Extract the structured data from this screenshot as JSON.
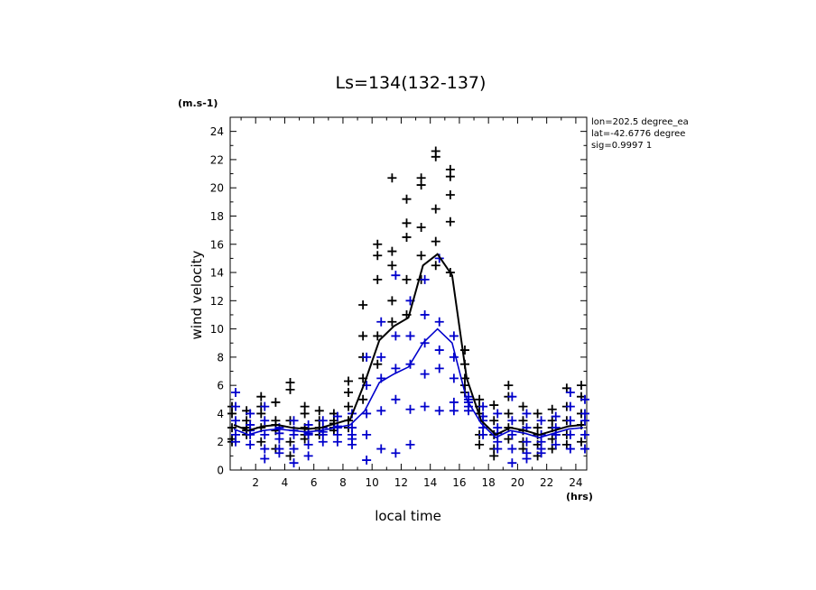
{
  "chart_data": {
    "type": "scatter",
    "title": "Ls=134(132-137)",
    "xlabel": "local time",
    "ylabel": "wind velocity",
    "y_unit": "(m.s-1)",
    "x_unit": "(hrs)",
    "xlim": [
      0.25,
      24.75
    ],
    "ylim": [
      0,
      25
    ],
    "x_ticks": [
      2,
      4,
      6,
      8,
      10,
      12,
      14,
      16,
      18,
      20,
      22,
      24
    ],
    "y_ticks": [
      0,
      2,
      4,
      6,
      8,
      10,
      12,
      14,
      16,
      18,
      20,
      22,
      24
    ],
    "grid": false,
    "annotations": [
      "lon=202.5 degree_ea",
      "lat=-42.6776 degree",
      "sig=0.9997 1"
    ],
    "colors": {
      "series_1": "#000000",
      "series_2": "#0000cc"
    },
    "hours": [
      0.5,
      1.5,
      2.5,
      3.5,
      4.5,
      5.5,
      6.5,
      7.5,
      8.5,
      9.5,
      10.5,
      11.5,
      12.5,
      13.5,
      14.5,
      15.5,
      16.5,
      17.5,
      18.5,
      19.5,
      20.5,
      21.5,
      22.5,
      23.5,
      24.5
    ],
    "series": [
      {
        "mean": [
          3.2,
          2.8,
          3.1,
          3.2,
          3.0,
          2.9,
          3.0,
          3.3,
          3.6,
          6.2,
          9.2,
          10.2,
          10.8,
          14.5,
          15.3,
          13.8,
          6.5,
          3.5,
          2.5,
          3.0,
          2.8,
          2.5,
          2.8,
          3.1,
          3.2
        ],
        "points": [
          [
            2.2,
            3.0,
            4.0,
            4.5,
            2.0
          ],
          [
            2.8,
            3.5,
            4.2,
            2.5,
            3.0
          ],
          [
            2.0,
            3.0,
            4.5,
            5.2,
            4.0
          ],
          [
            3.5,
            2.8,
            1.5,
            4.8,
            3.2
          ],
          [
            6.2,
            5.7,
            3.5,
            2.0,
            1.0
          ],
          [
            2.5,
            3.0,
            4.0,
            4.5,
            2.2
          ],
          [
            3.5,
            2.8,
            4.2,
            3.0,
            2.5
          ],
          [
            3.5,
            3.0,
            2.8,
            4.0,
            3.3
          ],
          [
            6.3,
            5.5,
            4.5,
            3.5,
            3.0
          ],
          [
            11.7,
            9.5,
            8.0,
            6.5,
            5.0
          ],
          [
            16.0,
            15.2,
            13.5,
            9.5,
            7.5
          ],
          [
            20.7,
            15.5,
            14.5,
            12.0,
            10.5
          ],
          [
            19.2,
            17.5,
            16.5,
            13.5,
            11.0
          ],
          [
            20.7,
            20.2,
            17.2,
            15.2,
            13.5
          ],
          [
            22.6,
            22.2,
            18.5,
            16.2,
            14.5
          ],
          [
            21.3,
            20.8,
            19.5,
            17.6,
            14.0
          ],
          [
            8.5,
            7.5,
            6.5,
            6.0,
            5.5
          ],
          [
            5.0,
            4.5,
            4.0,
            2.5,
            1.8
          ],
          [
            4.6,
            3.5,
            2.5,
            1.5,
            1.0
          ],
          [
            6.0,
            5.2,
            4.0,
            3.0,
            2.2
          ],
          [
            4.5,
            3.5,
            2.8,
            2.0,
            1.5
          ],
          [
            4.0,
            3.0,
            2.5,
            1.8,
            1.0
          ],
          [
            4.3,
            3.5,
            3.0,
            2.2,
            1.5
          ],
          [
            5.8,
            4.5,
            3.5,
            2.5,
            1.8
          ],
          [
            6.0,
            5.2,
            4.0,
            3.2,
            2.0
          ]
        ]
      },
      {
        "mean": [
          2.9,
          2.5,
          2.8,
          2.9,
          2.8,
          2.7,
          2.8,
          3.0,
          3.2,
          4.2,
          6.2,
          6.8,
          7.3,
          9.0,
          10.0,
          9.0,
          5.0,
          3.3,
          2.3,
          2.8,
          2.6,
          2.3,
          2.6,
          2.9,
          3.0
        ],
        "points": [
          [
            5.5,
            4.5,
            3.5,
            2.5,
            2.0
          ],
          [
            4.0,
            3.2,
            2.5,
            1.8,
            2.8
          ],
          [
            4.5,
            3.5,
            2.5,
            1.5,
            0.8
          ],
          [
            3.0,
            2.2,
            1.5,
            1.2,
            2.6
          ],
          [
            3.5,
            2.5,
            1.5,
            0.5,
            2.8
          ],
          [
            3.2,
            2.5,
            1.8,
            1.0,
            2.6
          ],
          [
            3.5,
            3.0,
            2.5,
            2.0,
            2.7
          ],
          [
            3.8,
            3.0,
            2.5,
            2.0,
            3.1
          ],
          [
            4.0,
            3.0,
            2.5,
            1.8,
            2.2
          ],
          [
            8.0,
            6.0,
            4.0,
            2.5,
            0.7
          ],
          [
            10.5,
            8.0,
            6.5,
            4.2,
            1.5
          ],
          [
            13.8,
            9.5,
            7.2,
            5.0,
            1.2
          ],
          [
            12.0,
            9.5,
            7.5,
            4.3,
            1.8
          ],
          [
            13.5,
            11.0,
            9.0,
            6.8,
            4.5
          ],
          [
            15.0,
            10.5,
            8.5,
            7.2,
            4.2
          ],
          [
            9.5,
            8.0,
            6.5,
            4.8,
            4.2
          ],
          [
            5.0,
            4.8,
            4.5,
            4.2,
            5.2
          ],
          [
            4.5,
            3.5,
            3.0,
            2.5,
            3.8
          ],
          [
            4.0,
            3.0,
            2.0,
            1.5,
            2.6
          ],
          [
            5.2,
            3.5,
            2.5,
            1.5,
            0.5
          ],
          [
            4.0,
            3.0,
            2.0,
            1.2,
            0.8
          ],
          [
            3.5,
            2.5,
            2.0,
            1.5,
            1.2
          ],
          [
            3.8,
            3.0,
            2.5,
            1.8,
            2.5
          ],
          [
            5.5,
            4.5,
            3.5,
            2.5,
            1.5
          ],
          [
            5.0,
            4.0,
            3.5,
            2.5,
            1.5
          ]
        ]
      }
    ]
  }
}
